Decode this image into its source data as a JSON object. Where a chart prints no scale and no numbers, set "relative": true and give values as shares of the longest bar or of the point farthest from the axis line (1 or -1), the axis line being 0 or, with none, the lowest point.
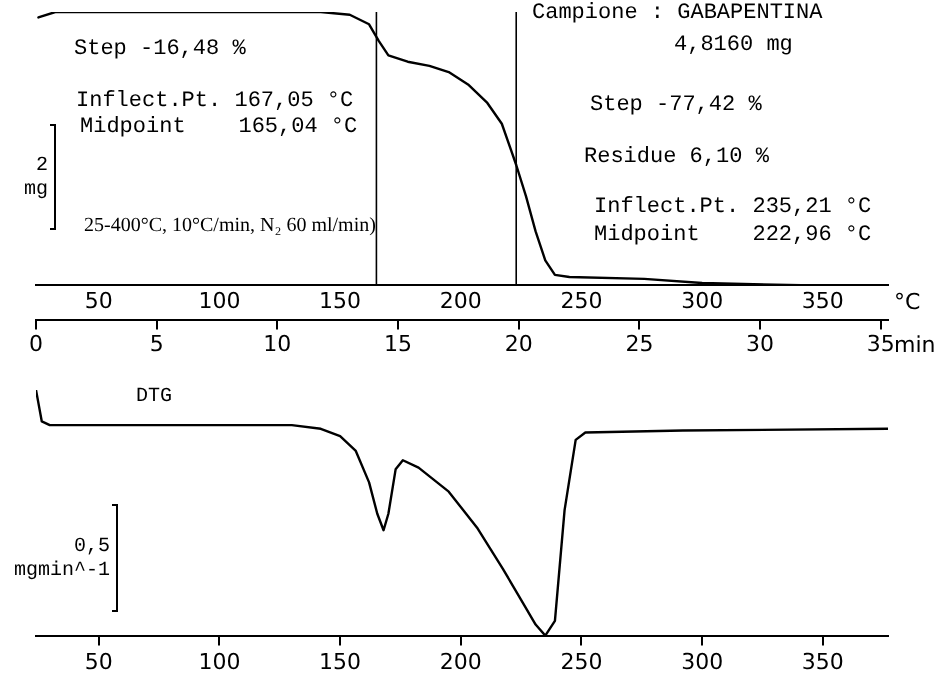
{
  "chart_data": [
    {
      "type": "line",
      "relative": true,
      "ylabel": "2 mg",
      "xlabel": "°C",
      "x2label": "min",
      "xlim": [
        24,
        377
      ],
      "xticks": [
        50,
        100,
        150,
        200,
        250,
        300,
        350
      ],
      "x2lim": [
        0,
        35.3
      ],
      "x2ticks": [
        0,
        5,
        10,
        15,
        20,
        25,
        30,
        35
      ],
      "tick_labels": "x",
      "series": [
        {
          "color": "#000000",
          "x": [
            25,
            32,
            142,
            154,
            162,
            166,
            170,
            178,
            187,
            195,
            203,
            211,
            217,
            223,
            227,
            231,
            235,
            239,
            245,
            276,
            300,
            341,
            377
          ],
          "values": [
            0.98,
            1.0,
            1.0,
            0.99,
            0.955,
            0.894,
            0.841,
            0.818,
            0.803,
            0.78,
            0.735,
            0.667,
            0.591,
            0.439,
            0.326,
            0.197,
            0.091,
            0.038,
            0.03,
            0.023,
            0.008,
            0,
            0
          ]
        }
      ],
      "ref_lines": [
        {
          "axis": "x",
          "value": 165.04
        },
        {
          "axis": "x",
          "value": 222.96
        }
      ],
      "annotations": [
        "Campione : GABAPENTINA",
        "4,8160 mg",
        "Step -16,48 %",
        "Inflect.Pt. 167,05 °C",
        "Midpoint    165,04 °C",
        "Step -77,42 %",
        "Residue 6,10 %",
        "Inflect.Pt. 235,21 °C",
        "Midpoint    222,96 °C",
        "25-400°C, 10°C/min, N₂ 60 ml/min)"
      ]
    },
    {
      "type": "line",
      "relative": true,
      "ylabel": "0,5 mgmin^-1",
      "xlim": [
        24,
        377
      ],
      "xticks": [
        50,
        100,
        150,
        200,
        250,
        300,
        350
      ],
      "tick_labels": "x",
      "series": [
        {
          "name": "DTG",
          "color": "#000000",
          "x": [
            24,
            26.4,
            29.7,
            130,
            142,
            150,
            156.5,
            162,
            165.4,
            168,
            170,
            173,
            176,
            182.5,
            195,
            207,
            217.5,
            225.6,
            231,
            235,
            239,
            243,
            247.6,
            251.6,
            292,
            377
          ],
          "values": [
            1.0,
            0.872,
            0.857,
            0.857,
            0.842,
            0.812,
            0.752,
            0.624,
            0.496,
            0.429,
            0.496,
            0.677,
            0.714,
            0.684,
            0.586,
            0.436,
            0.271,
            0.135,
            0.045,
            0,
            0.06,
            0.511,
            0.797,
            0.827,
            0.835,
            0.842
          ]
        }
      ]
    }
  ]
}
